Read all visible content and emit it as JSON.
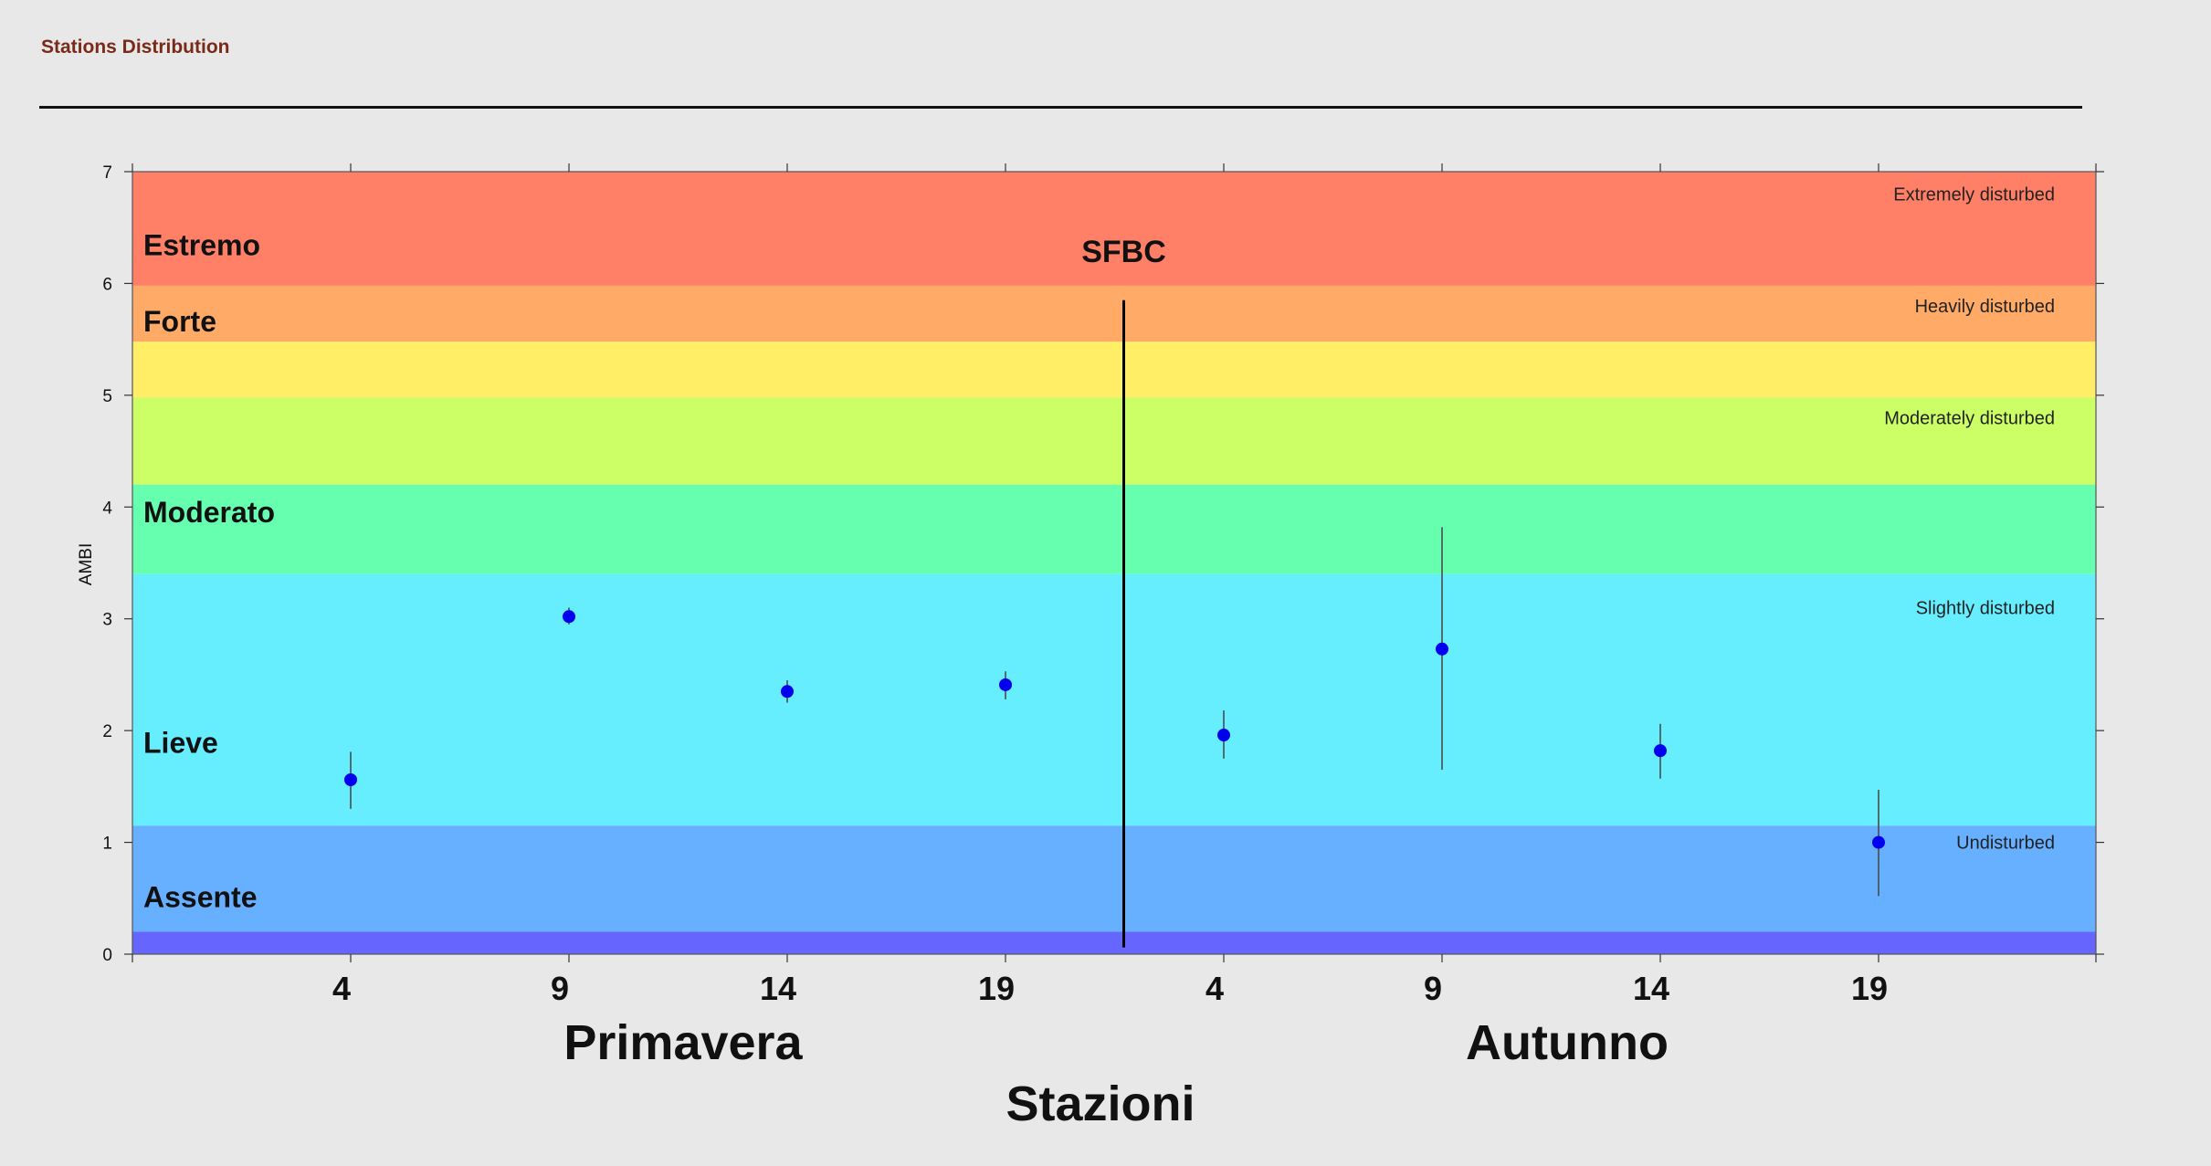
{
  "page": {
    "title": "Stations Distribution"
  },
  "chart_data": {
    "type": "scatter",
    "ylabel": "AMBI",
    "xlabel": "Stazioni",
    "ylim": [
      0,
      7
    ],
    "yticks": [
      0,
      1,
      2,
      3,
      4,
      5,
      6,
      7
    ],
    "grid": false,
    "bands": [
      {
        "from": 0.0,
        "to": 0.2,
        "color": "#6666ff"
      },
      {
        "from": 0.2,
        "to": 1.15,
        "color": "#66b0ff"
      },
      {
        "from": 1.15,
        "to": 3.4,
        "color": "#66eeff"
      },
      {
        "from": 3.4,
        "to": 4.2,
        "color": "#66ffb0"
      },
      {
        "from": 4.2,
        "to": 4.98,
        "color": "#ccff66"
      },
      {
        "from": 4.98,
        "to": 5.48,
        "color": "#ffee66"
      },
      {
        "from": 5.48,
        "to": 5.98,
        "color": "#ffaa66"
      },
      {
        "from": 5.98,
        "to": 7.0,
        "color": "#ff8066"
      }
    ],
    "left_labels": [
      {
        "text": "Estremo",
        "y": 6.35
      },
      {
        "text": "Forte",
        "y": 5.67
      },
      {
        "text": "Moderato",
        "y": 3.96
      },
      {
        "text": "Lieve",
        "y": 1.9
      },
      {
        "text": "Assente",
        "y": 0.52
      }
    ],
    "right_labels": [
      {
        "text": "Extremely disturbed",
        "y": 6.8
      },
      {
        "text": "Heavily disturbed",
        "y": 5.8
      },
      {
        "text": "Moderately disturbed",
        "y": 4.8
      },
      {
        "text": "Slightly disturbed",
        "y": 3.1
      },
      {
        "text": "Undisturbed",
        "y": 1.0
      }
    ],
    "divider": {
      "label": "SFBC",
      "ymin": 0.06,
      "ymax": 5.85
    },
    "groups": [
      {
        "name": "Primavera",
        "categories": [
          "4",
          "9",
          "14",
          "19"
        ]
      },
      {
        "name": "Autunno",
        "categories": [
          "4",
          "9",
          "14",
          "19"
        ]
      }
    ],
    "series": [
      {
        "values": [
          1.56,
          3.02,
          2.35,
          2.41,
          1.96,
          2.73,
          1.82,
          1.0
        ],
        "err_low": [
          1.3,
          2.95,
          2.25,
          2.28,
          1.75,
          1.65,
          1.57,
          0.52
        ],
        "err_high": [
          1.81,
          3.1,
          2.45,
          2.53,
          2.18,
          3.82,
          2.06,
          1.47
        ],
        "color": "#0000ee"
      }
    ]
  }
}
